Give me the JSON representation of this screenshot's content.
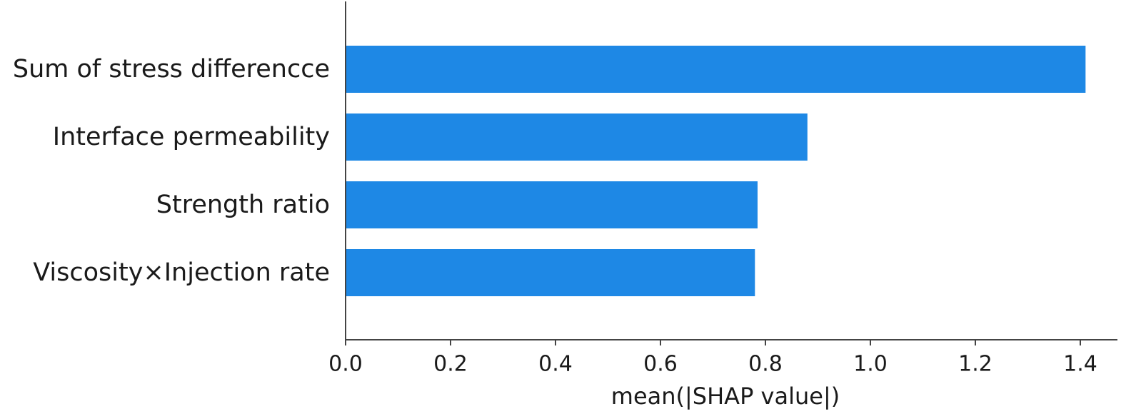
{
  "chart_data": {
    "type": "bar",
    "orientation": "horizontal",
    "categories": [
      "Sum of stress differencce",
      "Interface permeability",
      "Strength ratio",
      "Viscosity×Injection rate"
    ],
    "values": [
      1.41,
      0.88,
      0.785,
      0.78
    ],
    "xlabel": "mean(|SHAP value|)",
    "ylabel": "",
    "xlim": [
      0,
      1.45
    ],
    "xticks": [
      0.0,
      0.2,
      0.4,
      0.6,
      0.8,
      1.0,
      1.2,
      1.4
    ],
    "xtick_labels": [
      "0.0",
      "0.2",
      "0.4",
      "0.6",
      "0.8",
      "1.0",
      "1.2",
      "1.4"
    ],
    "grid": false,
    "bar_color": "#1e88e5",
    "axis_color": "#444444"
  }
}
